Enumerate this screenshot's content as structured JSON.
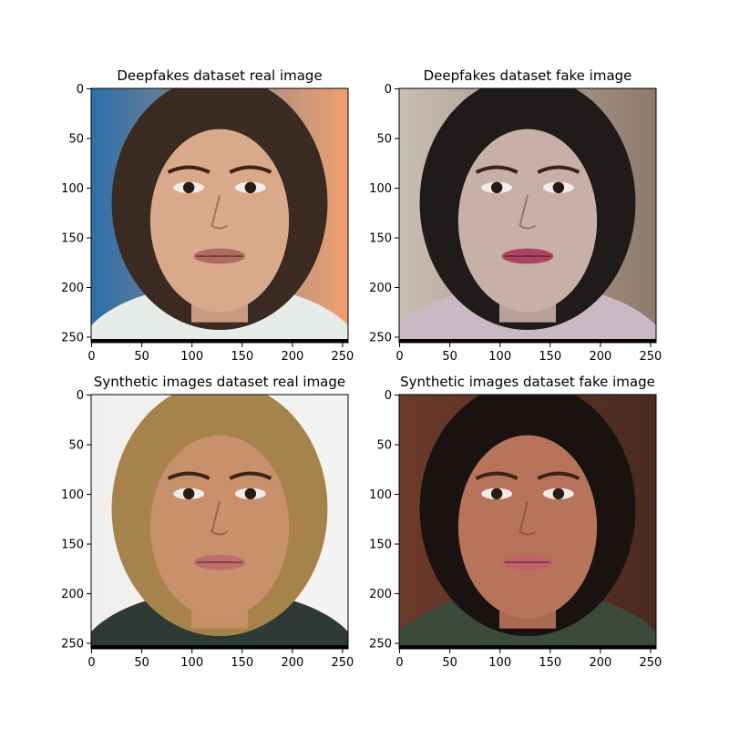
{
  "figure": {
    "panels": [
      {
        "title": "Deepfakes dataset real image",
        "x_ticks": [
          "0",
          "50",
          "100",
          "150",
          "200",
          "250"
        ],
        "y_ticks": [
          "0",
          "50",
          "100",
          "150",
          "200",
          "250"
        ],
        "content": "face-photo",
        "palette": {
          "bg_left": "#2d6fa8",
          "bg_right": "#f0a070",
          "hair": "#3a2a22",
          "skin": "#d9a98c",
          "lips": "#b06a63",
          "shirt": "#e8ece8"
        }
      },
      {
        "title": "Deepfakes dataset fake image",
        "x_ticks": [
          "0",
          "50",
          "100",
          "150",
          "200",
          "250"
        ],
        "y_ticks": [
          "0",
          "50",
          "100",
          "150",
          "200",
          "250"
        ],
        "content": "face-photo",
        "palette": {
          "bg_left": "#c9beb4",
          "bg_right": "#8e7a6c",
          "hair": "#1f1b1a",
          "skin": "#c8b0a8",
          "lips": "#a9455f",
          "shirt": "#c9b9c4"
        }
      },
      {
        "title": "Synthetic images dataset real image",
        "x_ticks": [
          "0",
          "50",
          "100",
          "150",
          "200",
          "250"
        ],
        "y_ticks": [
          "0",
          "50",
          "100",
          "150",
          "200",
          "250"
        ],
        "content": "face-photo",
        "palette": {
          "bg_left": "#f1efee",
          "bg_right": "#f6f4f3",
          "hair": "#a7834c",
          "skin": "#c9906c",
          "lips": "#c26d6d",
          "shirt": "#2d3b34"
        }
      },
      {
        "title": "Synthetic images dataset fake image",
        "x_ticks": [
          "0",
          "50",
          "100",
          "150",
          "200",
          "250"
        ],
        "y_ticks": [
          "0",
          "50",
          "100",
          "150",
          "200",
          "250"
        ],
        "content": "face-photo",
        "palette": {
          "bg_left": "#6b3a2a",
          "bg_right": "#4a2a20",
          "hair": "#1a1210",
          "skin": "#b8745a",
          "lips": "#c0626a",
          "shirt": "#3b4a3a"
        }
      }
    ]
  }
}
